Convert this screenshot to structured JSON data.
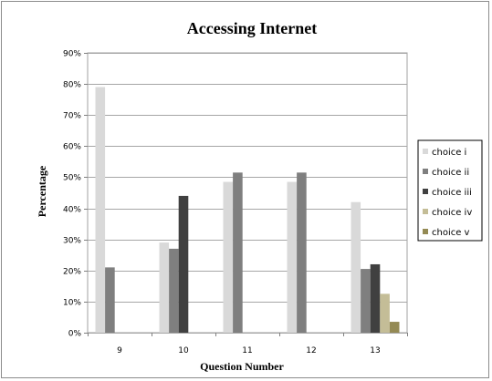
{
  "chart_data": {
    "type": "bar",
    "title": "Accessing Internet",
    "xlabel": "Question Number",
    "ylabel": "Percentage",
    "categories": [
      "9",
      "10",
      "11",
      "12",
      "13"
    ],
    "ylim": [
      0,
      90
    ],
    "yticks": [
      "0%",
      "10%",
      "20%",
      "30%",
      "40%",
      "50%",
      "60%",
      "70%",
      "80%",
      "90%"
    ],
    "grid": true,
    "legend_position": "right",
    "series": [
      {
        "name": "choice i",
        "color": "#d9d9d9",
        "values": [
          79,
          29,
          48.5,
          48.5,
          42
        ]
      },
      {
        "name": "choice ii",
        "color": "#7f7f7f",
        "values": [
          21,
          27,
          51.5,
          51.5,
          20.5
        ]
      },
      {
        "name": "choice iii",
        "color": "#404040",
        "values": [
          0,
          44,
          0,
          0,
          22
        ]
      },
      {
        "name": "choice iv",
        "color": "#c4bd97",
        "values": [
          0,
          0,
          0,
          0,
          12.5
        ]
      },
      {
        "name": "choice v",
        "color": "#948a54",
        "values": [
          0,
          0,
          0,
          0,
          3.5
        ]
      }
    ]
  }
}
